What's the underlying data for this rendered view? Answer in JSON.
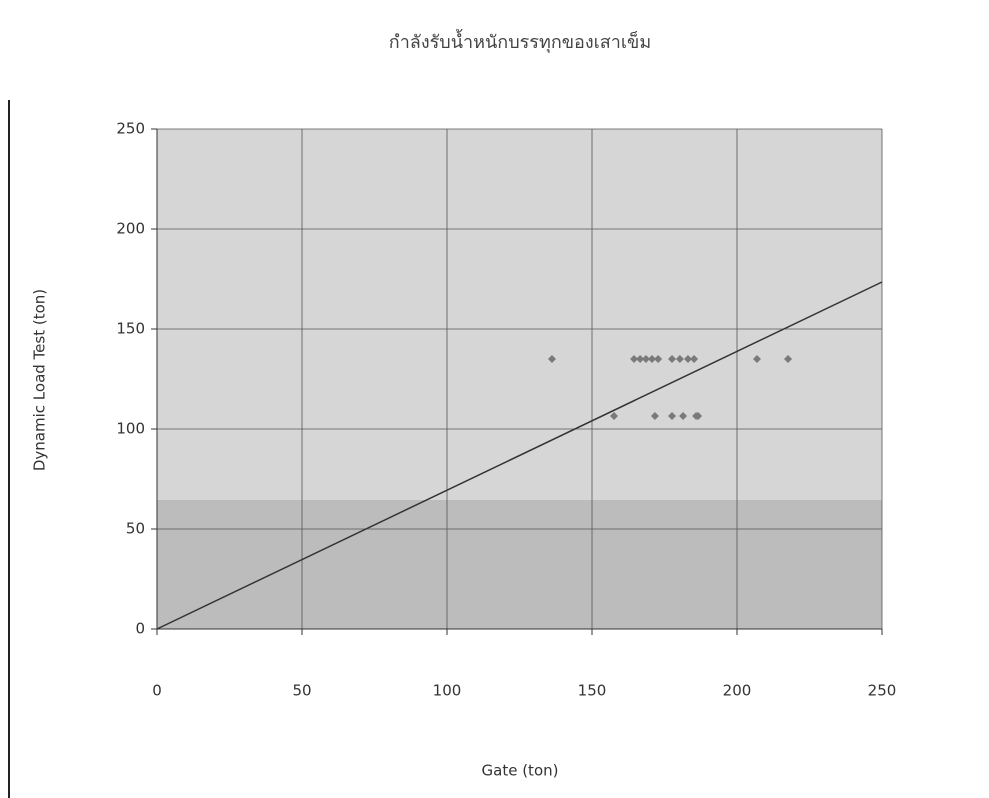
{
  "chart_data": {
    "type": "scatter",
    "title": "กำลังรับน้ำหนักบรรทุกของเสาเข็ม",
    "x_label": "Gate (ton)",
    "y_label": "Dynamic Load Test (ton)",
    "xlim": [
      0,
      250
    ],
    "ylim": [
      0,
      250
    ],
    "xticks": [
      0,
      50,
      100,
      150,
      200,
      250
    ],
    "yticks": [
      0,
      50,
      100,
      150,
      200,
      250
    ],
    "grid": true,
    "series": [
      {
        "color": "#7a7a7a",
        "x": [
          136.2,
          164.5,
          166.6,
          168.6,
          170.7,
          172.8,
          177.6,
          180.3,
          183.1,
          185.2,
          206.9,
          217.6,
          157.6,
          171.7,
          177.6,
          181.4,
          185.9,
          186.6
        ],
        "values": [
          135,
          135,
          135,
          135,
          135,
          135,
          135,
          135,
          135,
          135,
          135,
          135,
          106.5,
          106.5,
          106.5,
          106.5,
          106.5,
          106.5
        ]
      },
      {
        "type": "line",
        "color": "#333333",
        "x": [
          0,
          250
        ],
        "values": [
          0,
          173.5
        ]
      }
    ]
  }
}
